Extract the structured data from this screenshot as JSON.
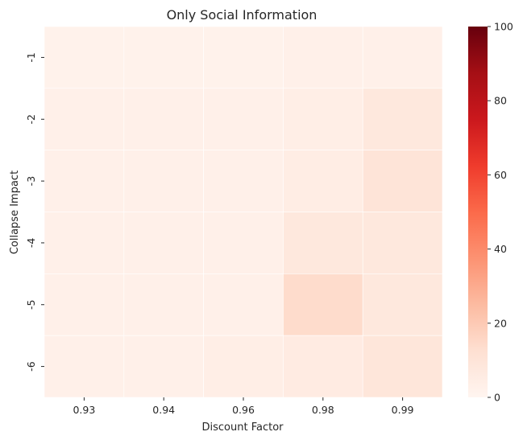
{
  "chart_data": {
    "type": "heatmap",
    "title": "Only Social Information",
    "xlabel": "Discount Factor",
    "ylabel": "Collapse Impact",
    "x_categories": [
      "0.93",
      "0.94",
      "0.96",
      "0.98",
      "0.99"
    ],
    "y_categories": [
      "-1",
      "-2",
      "-3",
      "-4",
      "-5",
      "-6"
    ],
    "values": [
      [
        2,
        2,
        2,
        3,
        3
      ],
      [
        3,
        3,
        3,
        4,
        8
      ],
      [
        3,
        3,
        3,
        5,
        10
      ],
      [
        3,
        3,
        3,
        8,
        8
      ],
      [
        3,
        3,
        3,
        14,
        8
      ],
      [
        3,
        3,
        4,
        6,
        9
      ]
    ],
    "colorbar": {
      "min": 0,
      "max": 100,
      "ticks": [
        "0",
        "20",
        "40",
        "60",
        "80",
        "100"
      ],
      "colormap": "Reds"
    },
    "grid": false,
    "legend": "colorbar-right"
  }
}
